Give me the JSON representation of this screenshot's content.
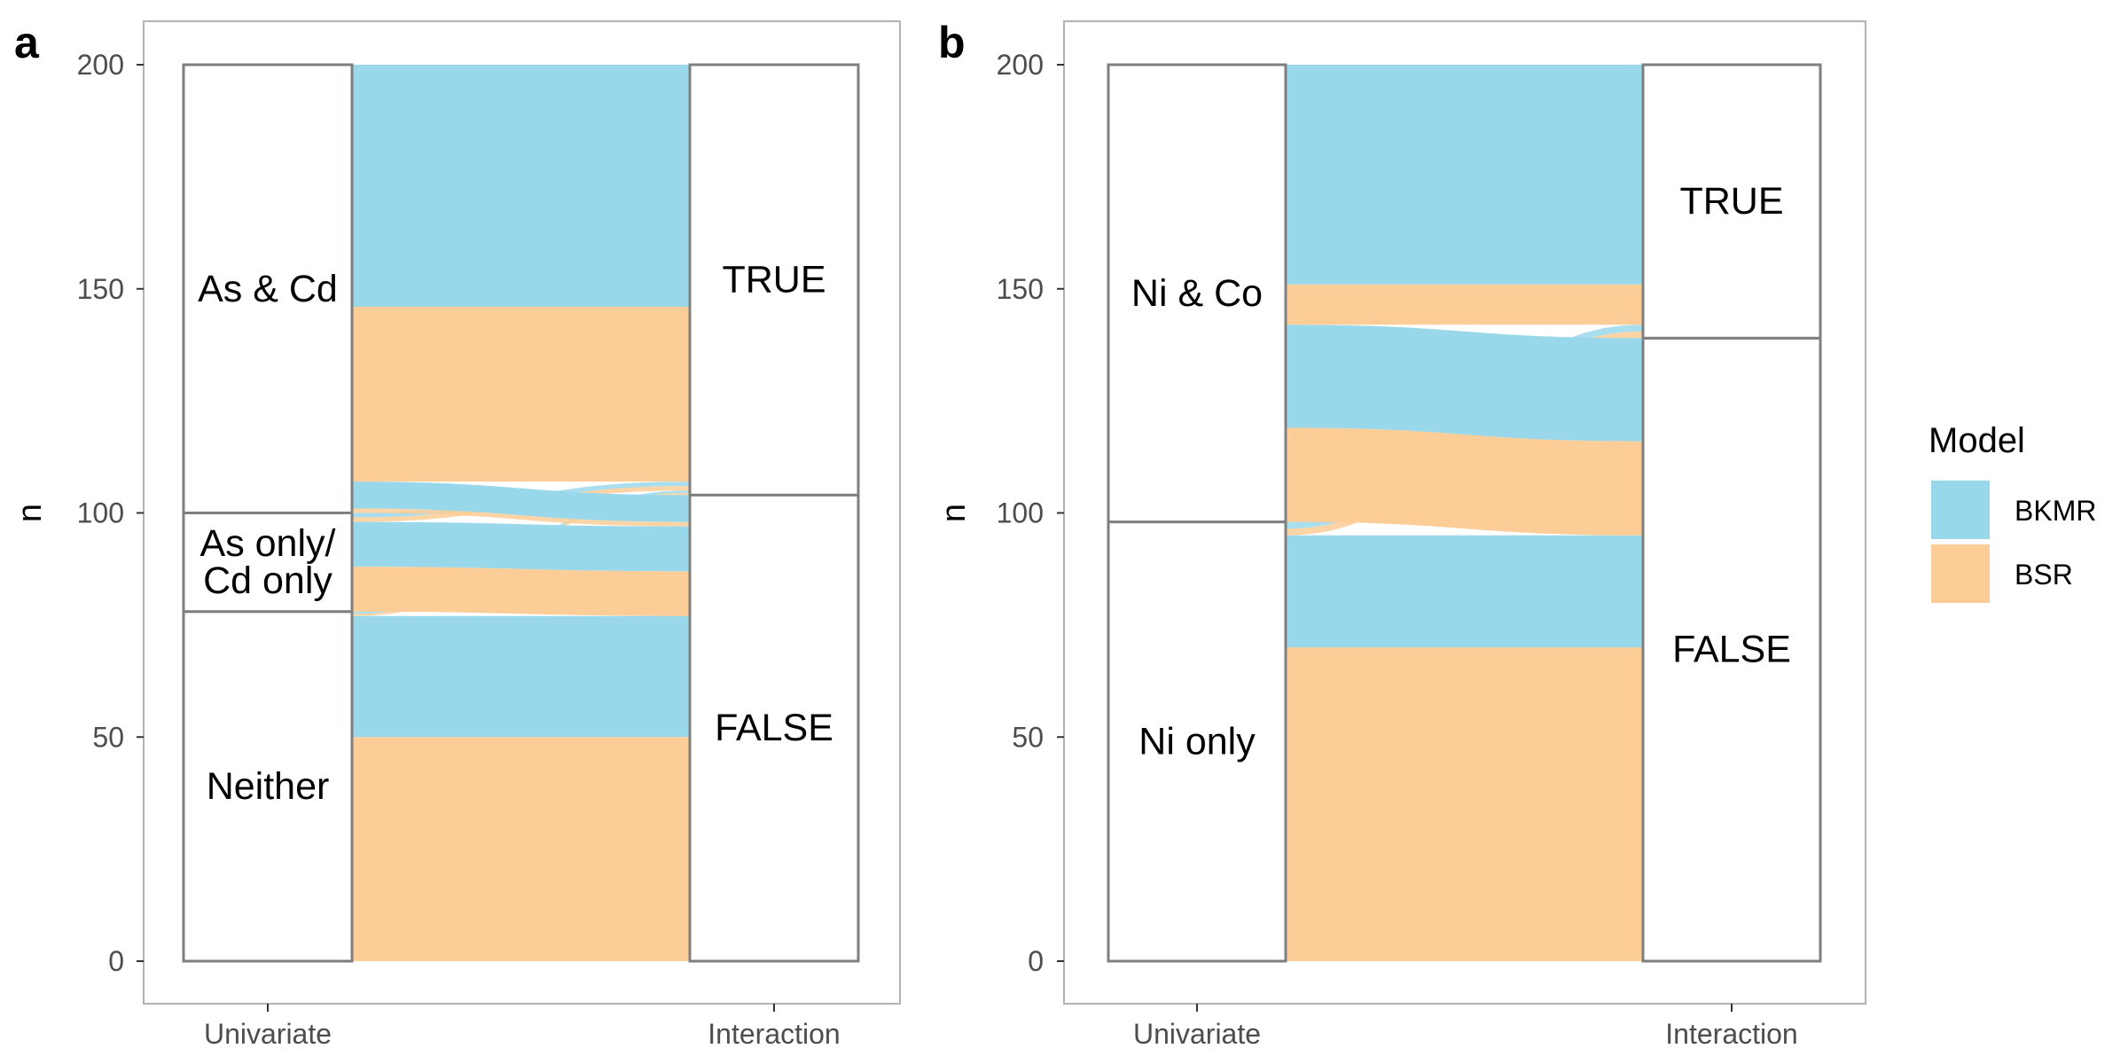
{
  "colors": {
    "BKMR": "#99d8ea",
    "BSR": "#fdcd97",
    "stratum_border": "#7f7f7f",
    "panel_border": "#b3b3b3",
    "tick_text": "#4d4d4d",
    "highlight": "#4db4da"
  },
  "legend": {
    "title": "Model",
    "items": [
      {
        "name": "BKMR",
        "color": "#99d8ea"
      },
      {
        "name": "BSR",
        "color": "#fdcd97"
      }
    ]
  },
  "chart_data": [
    {
      "type": "alluvial",
      "tag": "a",
      "ylabel": "n",
      "ylim": [
        0,
        200
      ],
      "yticks": [
        0,
        50,
        100,
        150,
        200
      ],
      "axes": [
        "Univariate",
        "Interaction"
      ],
      "strata": {
        "Univariate": [
          {
            "label": "Neither",
            "from": 0,
            "to": 78
          },
          {
            "label": "As only/\nCd only",
            "from": 78,
            "to": 100
          },
          {
            "label": "As & Cd",
            "from": 100,
            "to": 200
          }
        ],
        "Interaction": [
          {
            "label": "FALSE",
            "from": 0,
            "to": 104
          },
          {
            "label": "TRUE",
            "from": 104,
            "to": 200
          }
        ]
      },
      "flows": [
        {
          "model": "BSR",
          "from": "Neither",
          "to": "FALSE",
          "n": 50
        },
        {
          "model": "BKMR",
          "from": "Neither",
          "to": "FALSE",
          "n": 27
        },
        {
          "model": "BSR",
          "from": "Neither",
          "to": "TRUE",
          "n": 0.5
        },
        {
          "model": "BKMR",
          "from": "Neither",
          "to": "TRUE",
          "n": 0.5
        },
        {
          "model": "BSR",
          "from": "As only/\nCd only",
          "to": "FALSE",
          "n": 10
        },
        {
          "model": "BKMR",
          "from": "As only/\nCd only",
          "to": "FALSE",
          "n": 10
        },
        {
          "model": "BSR",
          "from": "As only/\nCd only",
          "to": "TRUE",
          "n": 1
        },
        {
          "model": "BKMR",
          "from": "As only/\nCd only",
          "to": "TRUE",
          "n": 1
        },
        {
          "model": "BSR",
          "from": "As & Cd",
          "to": "FALSE",
          "n": 1
        },
        {
          "model": "BKMR",
          "from": "As & Cd",
          "to": "FALSE",
          "n": 6
        },
        {
          "model": "BSR",
          "from": "As & Cd",
          "to": "TRUE",
          "n": 39
        },
        {
          "model": "BKMR",
          "from": "As & Cd",
          "to": "TRUE",
          "n": 54
        }
      ]
    },
    {
      "type": "alluvial",
      "tag": "b",
      "ylabel": "n",
      "ylim": [
        0,
        200
      ],
      "yticks": [
        0,
        50,
        100,
        150,
        200
      ],
      "axes": [
        "Univariate",
        "Interaction"
      ],
      "strata": {
        "Univariate": [
          {
            "label": "Ni only",
            "from": 0,
            "to": 98
          },
          {
            "label": "Ni & Co",
            "from": 98,
            "to": 200
          }
        ],
        "Interaction": [
          {
            "label": "FALSE",
            "from": 0,
            "to": 139
          },
          {
            "label": "TRUE",
            "from": 139,
            "to": 200
          }
        ]
      },
      "flows": [
        {
          "model": "BSR",
          "from": "Ni only",
          "to": "FALSE",
          "n": 70
        },
        {
          "model": "BKMR",
          "from": "Ni only",
          "to": "FALSE",
          "n": 25
        },
        {
          "model": "BSR",
          "from": "Ni only",
          "to": "TRUE",
          "n": 1.5
        },
        {
          "model": "BKMR",
          "from": "Ni only",
          "to": "TRUE",
          "n": 1.5
        },
        {
          "model": "BSR",
          "from": "Ni & Co",
          "to": "FALSE",
          "n": 21
        },
        {
          "model": "BKMR",
          "from": "Ni & Co",
          "to": "FALSE",
          "n": 23
        },
        {
          "model": "BSR",
          "from": "Ni & Co",
          "to": "TRUE",
          "n": 9
        },
        {
          "model": "BKMR",
          "from": "Ni & Co",
          "to": "TRUE",
          "n": 49
        }
      ]
    }
  ]
}
